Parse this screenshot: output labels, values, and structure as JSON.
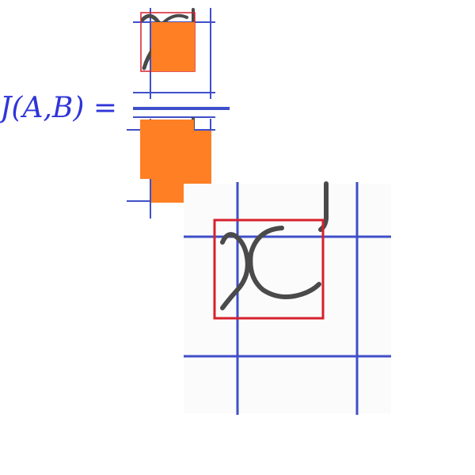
{
  "formula": {
    "lhs": "J(A,B) ="
  },
  "colors": {
    "formula_blue": "#2f35d8",
    "grid_blue": "#3f4fc9",
    "box_red": "#d6212d",
    "fill_orange": "#ff7f24",
    "stroke_gray": "#4a4a4a"
  },
  "icons": {
    "glyph": "handwritten-x-glyph-icon"
  }
}
